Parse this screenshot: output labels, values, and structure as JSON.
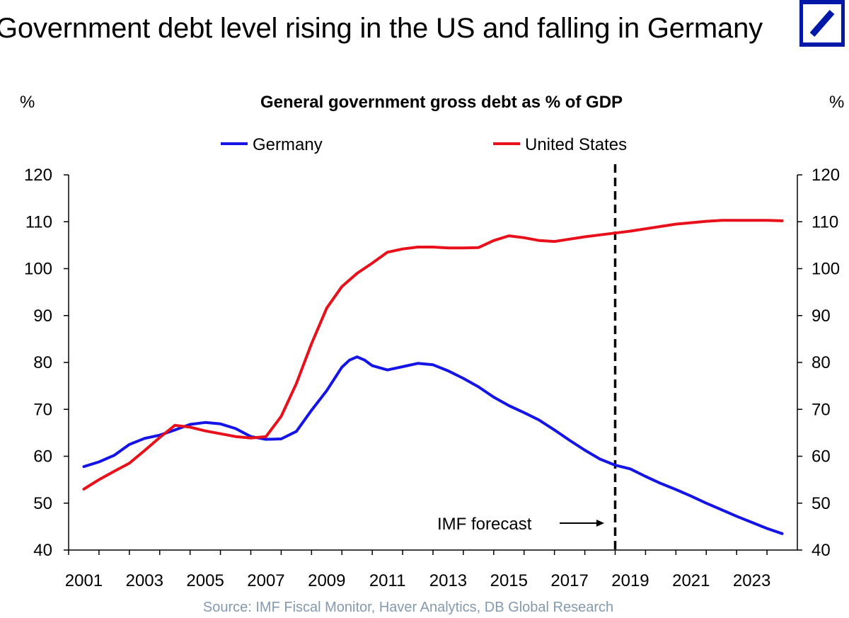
{
  "header": {
    "title": "Government debt level rising in the US and falling in Germany"
  },
  "logo": {
    "name": "deutsche-bank-logo",
    "color": "#0018A8"
  },
  "chart_data": {
    "type": "line",
    "title": "General government gross debt as % of GDP",
    "ylabel_left": "%",
    "ylabel_right": "%",
    "ylim": [
      40,
      120
    ],
    "yticks": [
      40,
      50,
      60,
      70,
      80,
      90,
      100,
      110,
      120
    ],
    "xlim": [
      2000.5,
      2024.5
    ],
    "xticks": [
      2001,
      2003,
      2005,
      2007,
      2009,
      2011,
      2013,
      2015,
      2017,
      2019,
      2021,
      2023
    ],
    "legend_position": "top",
    "grid": false,
    "series": [
      {
        "name": "Germany",
        "color": "#1414E6",
        "x": [
          2001,
          2001.5,
          2002,
          2002.5,
          2003,
          2003.5,
          2004,
          2004.5,
          2005,
          2005.5,
          2006,
          2006.5,
          2007,
          2007.5,
          2008,
          2008.5,
          2009,
          2009.5,
          2009.75,
          2010,
          2010.25,
          2010.5,
          2011,
          2011.5,
          2012,
          2012.5,
          2013,
          2013.5,
          2014,
          2014.5,
          2015,
          2015.5,
          2016,
          2016.5,
          2017,
          2017.5,
          2018,
          2018.5,
          2019,
          2019.5,
          2020,
          2020.5,
          2021,
          2021.5,
          2022,
          2022.5,
          2023,
          2023.5,
          2024
        ],
        "y": [
          57.8,
          58.8,
          60.2,
          62.5,
          63.8,
          64.5,
          65.6,
          66.8,
          67.2,
          66.9,
          65.9,
          64.2,
          63.6,
          63.7,
          65.3,
          69.8,
          74.0,
          79.0,
          80.5,
          81.2,
          80.5,
          79.3,
          78.4,
          79.1,
          79.8,
          79.5,
          78.2,
          76.6,
          74.8,
          72.6,
          70.8,
          69.3,
          67.7,
          65.6,
          63.4,
          61.3,
          59.4,
          58.1,
          57.3,
          55.7,
          54.2,
          52.9,
          51.5,
          50.0,
          48.6,
          47.2,
          45.9,
          44.6,
          43.5
        ]
      },
      {
        "name": "United States",
        "color": "#E8101A",
        "x": [
          2001,
          2001.5,
          2002,
          2002.5,
          2003,
          2003.5,
          2004,
          2004.5,
          2005,
          2005.5,
          2006,
          2006.5,
          2007,
          2007.5,
          2008,
          2008.5,
          2009,
          2009.5,
          2010,
          2010.5,
          2011,
          2011.5,
          2012,
          2012.5,
          2013,
          2013.5,
          2014,
          2014.5,
          2015,
          2015.5,
          2016,
          2016.5,
          2017,
          2017.5,
          2018,
          2018.5,
          2019,
          2019.5,
          2020,
          2020.5,
          2021,
          2021.5,
          2022,
          2022.5,
          2023,
          2023.5,
          2024
        ],
        "y": [
          53.0,
          55.0,
          56.8,
          58.5,
          61.2,
          64.0,
          66.6,
          66.2,
          65.4,
          64.8,
          64.2,
          63.9,
          64.2,
          68.5,
          75.5,
          84.0,
          91.6,
          96.2,
          99.0,
          101.2,
          103.5,
          104.2,
          104.6,
          104.6,
          104.4,
          104.4,
          104.5,
          106.0,
          107.0,
          106.6,
          106.0,
          105.8,
          106.3,
          106.8,
          107.2,
          107.6,
          108.0,
          108.5,
          109.0,
          109.5,
          109.8,
          110.1,
          110.3,
          110.3,
          110.3,
          110.3,
          110.2
        ]
      }
    ],
    "forecast_line_x": 2018.5,
    "annotation": "IMF forecast",
    "source": "Source: IMF Fiscal Monitor, Haver Analytics, DB Global  Research"
  }
}
